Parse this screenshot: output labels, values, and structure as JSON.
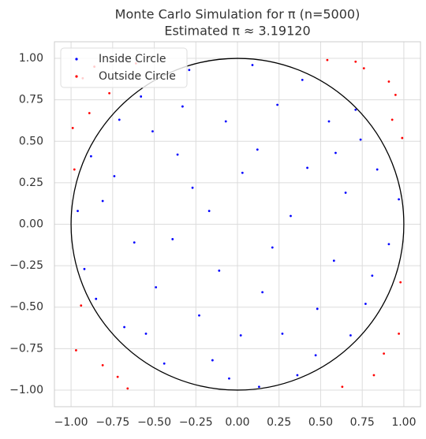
{
  "chart_data": {
    "type": "scatter",
    "title": "Monte Carlo Simulation for π (n=5000)",
    "subtitle": "Estimated π ≈ 3.19120",
    "xlim": [
      -1.1,
      1.1
    ],
    "ylim": [
      -1.1,
      1.1
    ],
    "xticks": [
      {
        "value": -1,
        "label": "−1.00"
      },
      {
        "value": -0.75,
        "label": "−0.75"
      },
      {
        "value": -0.5,
        "label": "−0.50"
      },
      {
        "value": -0.25,
        "label": "−0.25"
      },
      {
        "value": 0,
        "label": "0.00"
      },
      {
        "value": 0.25,
        "label": "0.25"
      },
      {
        "value": 0.5,
        "label": "0.50"
      },
      {
        "value": 0.75,
        "label": "0.75"
      },
      {
        "value": 1,
        "label": "1.00"
      }
    ],
    "yticks": [
      {
        "value": -1,
        "label": "−1.00"
      },
      {
        "value": -0.75,
        "label": "−0.75"
      },
      {
        "value": -0.5,
        "label": "−0.50"
      },
      {
        "value": -0.25,
        "label": "−0.25"
      },
      {
        "value": 0,
        "label": "0.00"
      },
      {
        "value": 0.25,
        "label": "0.25"
      },
      {
        "value": 0.5,
        "label": "0.50"
      },
      {
        "value": 0.75,
        "label": "0.75"
      },
      {
        "value": 1,
        "label": "1.00"
      }
    ],
    "grid": true,
    "legend": "upper left",
    "reference_circle": {
      "center": [
        0,
        0
      ],
      "radius": 1,
      "color": "#000000"
    },
    "series": [
      {
        "name": "Inside Circle",
        "color": "#0000ff",
        "x": [
          0.12,
          -0.33,
          0.58,
          -0.81,
          0.27,
          -0.05,
          0.74,
          -0.49,
          0.91,
          -0.17,
          0.39,
          -0.68,
          0.03,
          0.65,
          -0.92,
          0.21,
          -0.36,
          0.47,
          -0.58,
          0.84,
          -0.23,
          0.09,
          -0.74,
          0.55,
          -0.11,
          0.32,
          -0.44,
          0.77,
          -0.96,
          0.15,
          -0.62,
          0.42,
          -0.29,
          0.68,
          -0.85,
          0.02,
          -0.51,
          0.97,
          -0.07,
          0.36,
          -0.39,
          0.81,
          -0.71,
          0.24,
          -0.15,
          0.59,
          -0.88,
          0.48,
          -0.27,
          0.13,
          -0.55,
          0.71
        ],
        "y": [
          0.45,
          0.71,
          -0.22,
          0.14,
          -0.66,
          -0.93,
          0.51,
          -0.38,
          -0.12,
          0.08,
          0.87,
          -0.62,
          0.31,
          0.19,
          -0.27,
          -0.14,
          0.42,
          -0.79,
          0.77,
          0.33,
          -0.55,
          0.96,
          0.29,
          0.62,
          -0.28,
          0.05,
          -0.84,
          -0.48,
          0.08,
          -0.41,
          -0.11,
          0.34,
          0.93,
          -0.67,
          -0.45,
          -0.67,
          0.56,
          0.15,
          0.62,
          -0.91,
          -0.09,
          -0.31,
          0.63,
          0.72,
          -0.82,
          0.43,
          0.41,
          -0.51,
          0.22,
          -0.98,
          -0.66,
          0.69
        ]
      },
      {
        "name": "Outside Circle",
        "color": "#ff0000",
        "x": [
          0.95,
          -0.93,
          0.82,
          -0.97,
          0.99,
          -0.86,
          0.63,
          -0.72,
          0.91,
          -0.99,
          0.76,
          -0.61,
          0.97,
          -0.94,
          0.88,
          -0.81,
          0.54,
          -0.98,
          0.98,
          -0.66,
          0.71,
          -0.89,
          0.93,
          -0.77
        ],
        "y": [
          0.78,
          0.88,
          -0.91,
          -0.76,
          0.52,
          0.95,
          -0.98,
          -0.92,
          0.86,
          0.58,
          0.94,
          0.97,
          -0.66,
          -0.49,
          -0.78,
          -0.85,
          0.99,
          0.33,
          -0.35,
          -0.99,
          0.98,
          0.67,
          0.63,
          0.79
        ]
      }
    ]
  }
}
